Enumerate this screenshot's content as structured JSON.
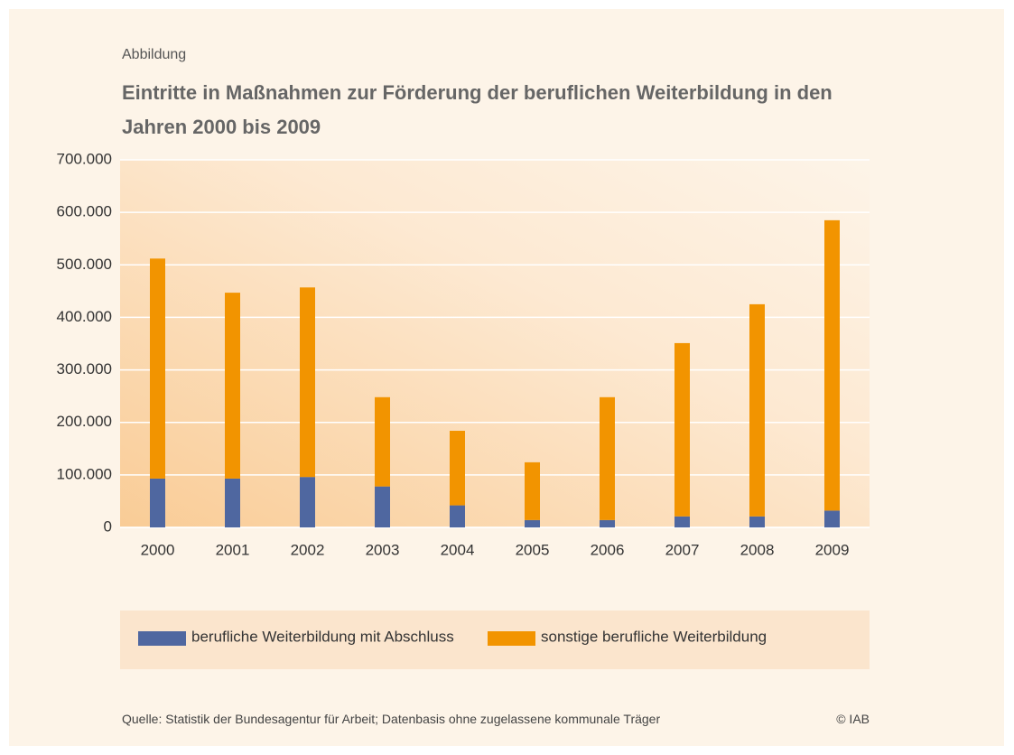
{
  "chart_data": {
    "type": "stacked_bar",
    "kicker": "Abbildung",
    "title": "Eintritte in Maßnahmen zur Förderung der beruflichen Weiterbildung in den Jahren 2000 bis 2009",
    "categories": [
      "2000",
      "2001",
      "2002",
      "2003",
      "2004",
      "2005",
      "2006",
      "2007",
      "2008",
      "2009"
    ],
    "series": [
      {
        "name": "berufliche Weiterbildung mit Abschluss",
        "color": "#4f67a0",
        "values": [
          93000,
          93000,
          96000,
          78000,
          42000,
          14000,
          14000,
          21000,
          21000,
          32000
        ]
      },
      {
        "name": "sonstige berufliche Weiterbildung",
        "color": "#f29400",
        "values": [
          419000,
          354000,
          361000,
          170000,
          142000,
          110000,
          234000,
          330000,
          404000,
          553000
        ]
      }
    ],
    "ylim": [
      0,
      700000
    ],
    "yticks": [
      0,
      {
        "value": 100000,
        "label": "100.000"
      },
      {
        "value": 200000,
        "label": "200.000"
      },
      {
        "value": 300000,
        "label": "300.000"
      },
      {
        "value": 400000,
        "label": "400.000"
      },
      {
        "value": 500000,
        "label": "500.000"
      },
      {
        "value": 600000,
        "label": "600.000"
      },
      {
        "value": 700000,
        "label": "700.000"
      }
    ],
    "grid": true,
    "legend": "bottom",
    "source": "Quelle: Statistik der Bundesagentur für Arbeit; Datenbasis ohne zugelassene kommunale Träger",
    "copyright": "© IAB"
  }
}
